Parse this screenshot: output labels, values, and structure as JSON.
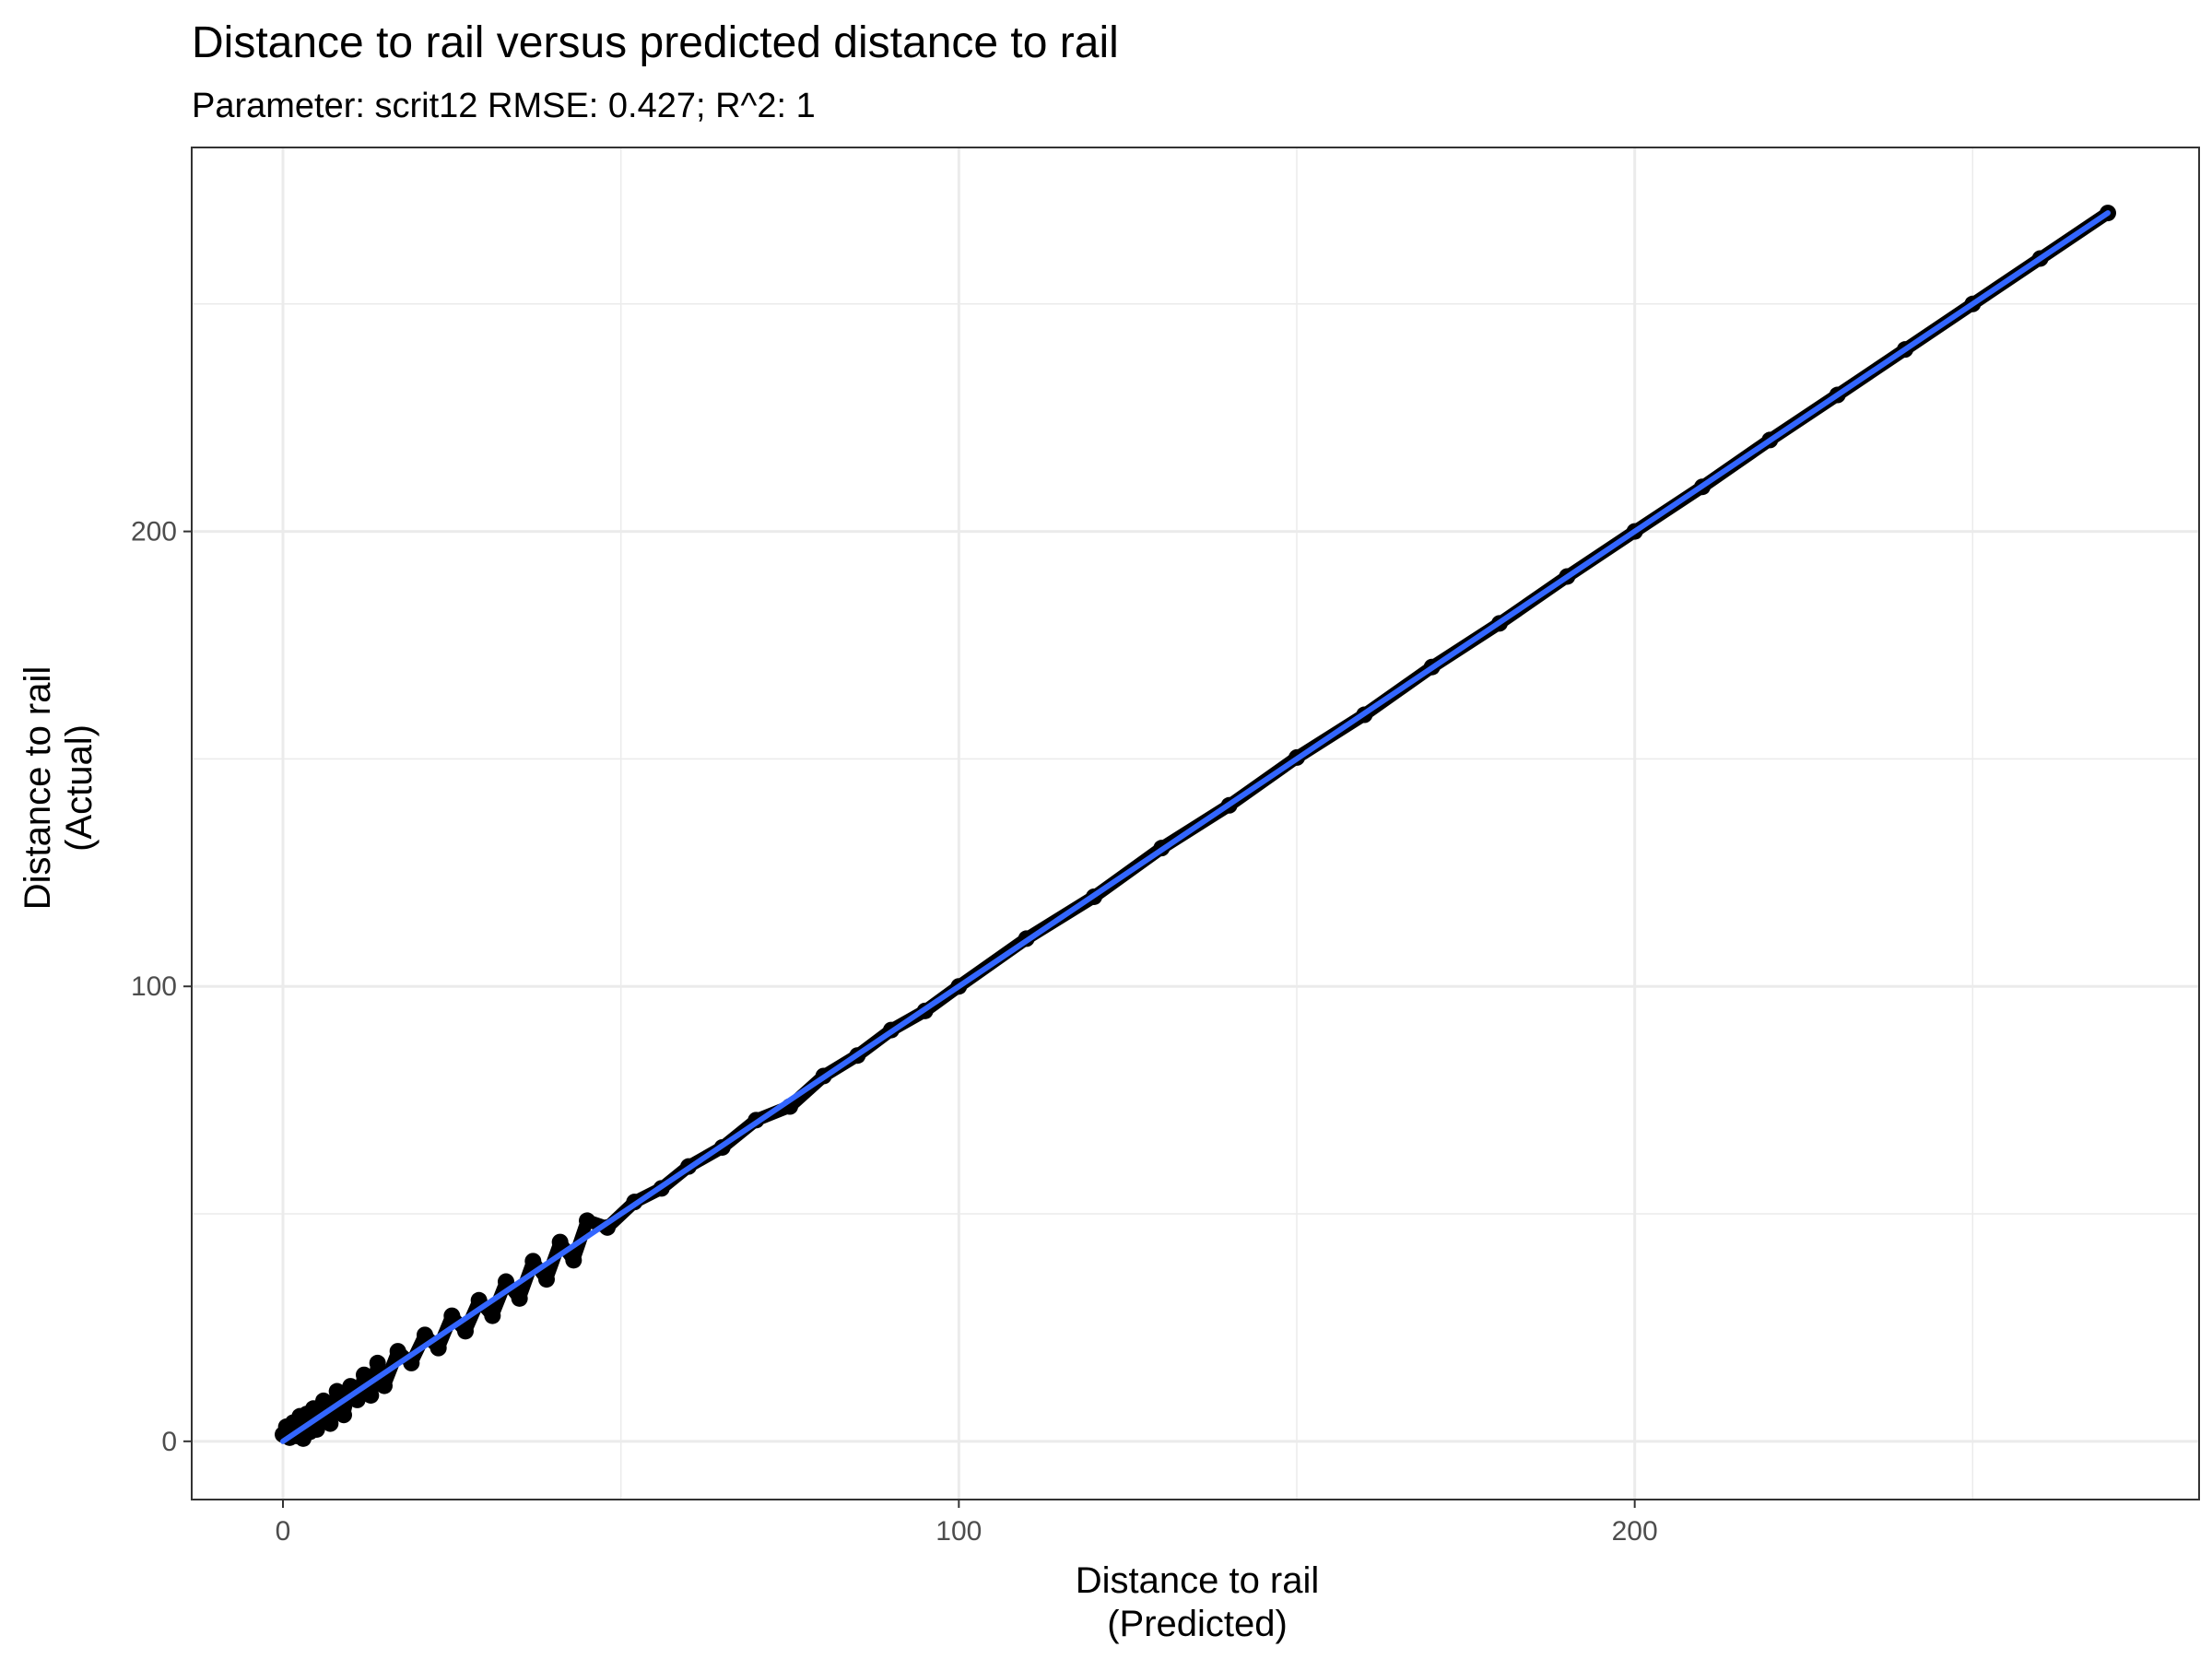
{
  "chart_data": {
    "type": "scatter",
    "title": "Distance to rail versus predicted distance to rail",
    "subtitle": "Parameter: scrit12   RMSE: 0.427;   R^2: 1",
    "xlabel": [
      "Distance to rail",
      "(Predicted)"
    ],
    "ylabel": [
      "Distance to rail",
      "(Actual)"
    ],
    "xlim": [
      -13.5,
      283.5
    ],
    "ylim": [
      -12.8,
      284.4
    ],
    "x_ticks": [
      0,
      100,
      200
    ],
    "y_ticks": [
      0,
      100,
      200
    ],
    "x_minor_ticks": [
      50,
      150,
      250
    ],
    "y_minor_ticks": [
      50,
      150,
      250
    ],
    "grid": true,
    "colors": {
      "points": "#000000",
      "fit_line": "#3366FF",
      "grid": "#ebebeb",
      "panel_border": "#333333"
    },
    "series": [
      {
        "kind": "points",
        "x": [
          0,
          0.5,
          1,
          1.5,
          2,
          2.5,
          3,
          3.5,
          4,
          4.5,
          5,
          6,
          7,
          8,
          9,
          10,
          11,
          12,
          13,
          14,
          15,
          17,
          19,
          21,
          23,
          25,
          27,
          29,
          31,
          33,
          35,
          37,
          39,
          41,
          43,
          45,
          48,
          52,
          56,
          60,
          65,
          70,
          75,
          80,
          85,
          90,
          95,
          100,
          110,
          120,
          130,
          140,
          150,
          160,
          170,
          180,
          190,
          200,
          210,
          220,
          230,
          240,
          250,
          260,
          270
        ],
        "y": [
          1.5,
          3.2,
          0.8,
          4.1,
          1.2,
          5.5,
          0.6,
          6.0,
          2.1,
          7.2,
          2.6,
          8.9,
          3.9,
          11.0,
          5.8,
          12.1,
          9.1,
          14.6,
          10.1,
          17.2,
          12.2,
          19.8,
          17.2,
          23.4,
          20.5,
          27.6,
          24.2,
          31.0,
          27.6,
          35.1,
          31.4,
          39.6,
          35.6,
          43.8,
          39.8,
          48.5,
          47.0,
          52.6,
          55.6,
          60.4,
          64.6,
          70.6,
          73.6,
          80.3,
          84.8,
          90.4,
          94.6,
          100.0,
          110.5,
          119.7,
          130.4,
          139.8,
          150.3,
          159.7,
          170.2,
          179.8,
          190.1,
          200.0,
          209.8,
          220.1,
          230.0,
          240.0,
          250.0,
          260.0,
          270.0
        ]
      },
      {
        "kind": "fit_line",
        "x": [
          0,
          270
        ],
        "y": [
          0,
          270
        ]
      }
    ]
  }
}
